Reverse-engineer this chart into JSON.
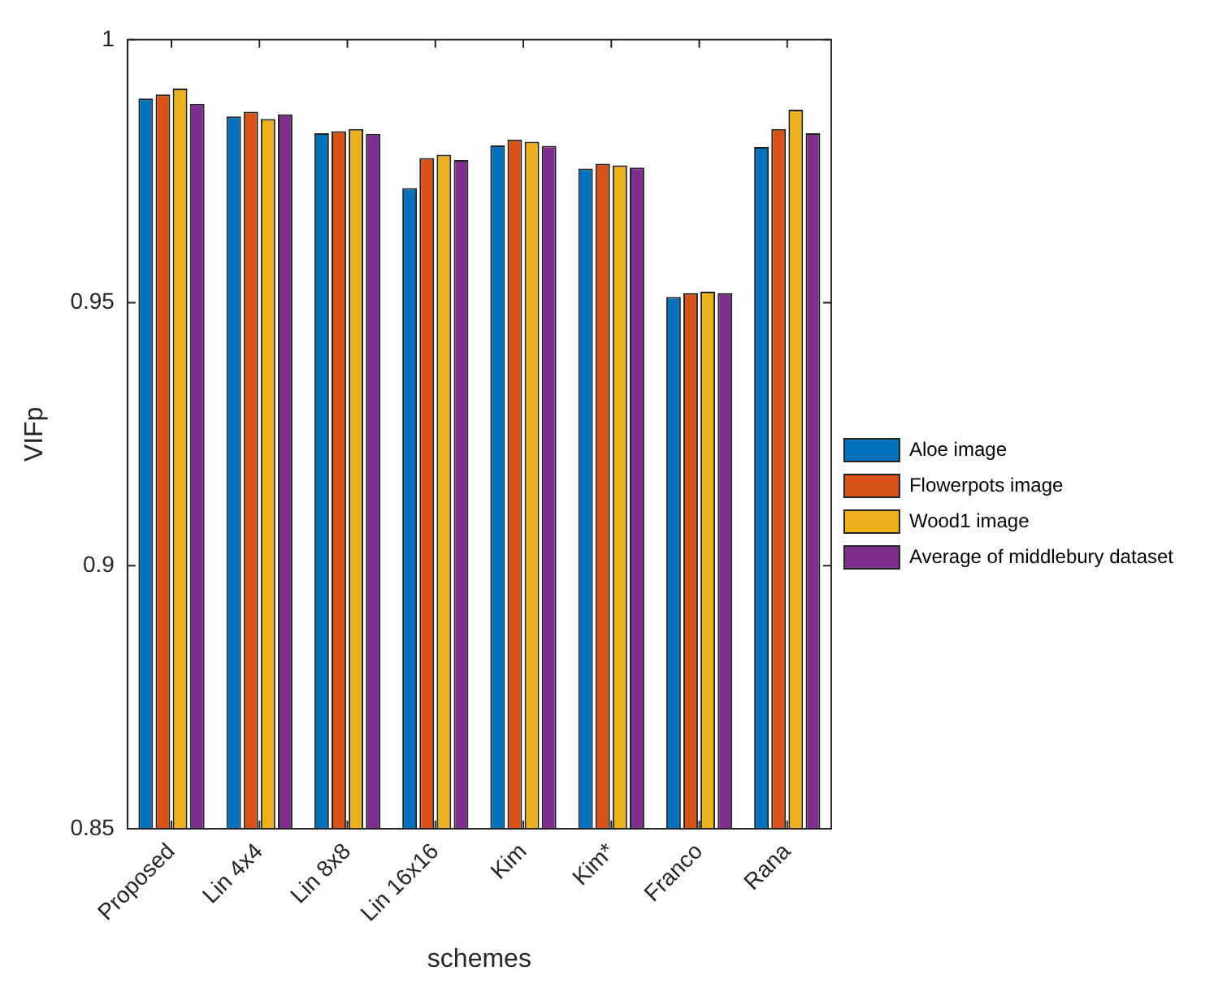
{
  "chart_data": {
    "type": "bar",
    "xlabel": "schemes",
    "ylabel": "VIFp",
    "categories": [
      "Proposed",
      "Lin 4x4",
      "Lin 8x8",
      "Lin 16x16",
      "Kim",
      "Kim*",
      "Franco",
      "Rana"
    ],
    "series": [
      {
        "name": "Aloe image",
        "color": "#0072bd",
        "values": [
          0.9888,
          0.9854,
          0.9822,
          0.9718,
          0.9799,
          0.9755,
          0.9511,
          0.9796
        ]
      },
      {
        "name": "Flowerpots image",
        "color": "#d95319",
        "values": [
          0.9896,
          0.9863,
          0.9826,
          0.9775,
          0.981,
          0.9764,
          0.9518,
          0.983
        ]
      },
      {
        "name": "Wood1 image",
        "color": "#edb120",
        "values": [
          0.9907,
          0.9849,
          0.983,
          0.9781,
          0.9806,
          0.9761,
          0.9521,
          0.9867
        ]
      },
      {
        "name": "Average of middlebury dataset",
        "color": "#7e2f8e",
        "values": [
          0.9878,
          0.9858,
          0.9821,
          0.9771,
          0.9798,
          0.9757,
          0.9518,
          0.9822
        ]
      }
    ],
    "ylim": [
      0.85,
      1
    ],
    "yticks": [
      0.85,
      0.9,
      0.95,
      1
    ],
    "grid": false,
    "legend": "right"
  }
}
